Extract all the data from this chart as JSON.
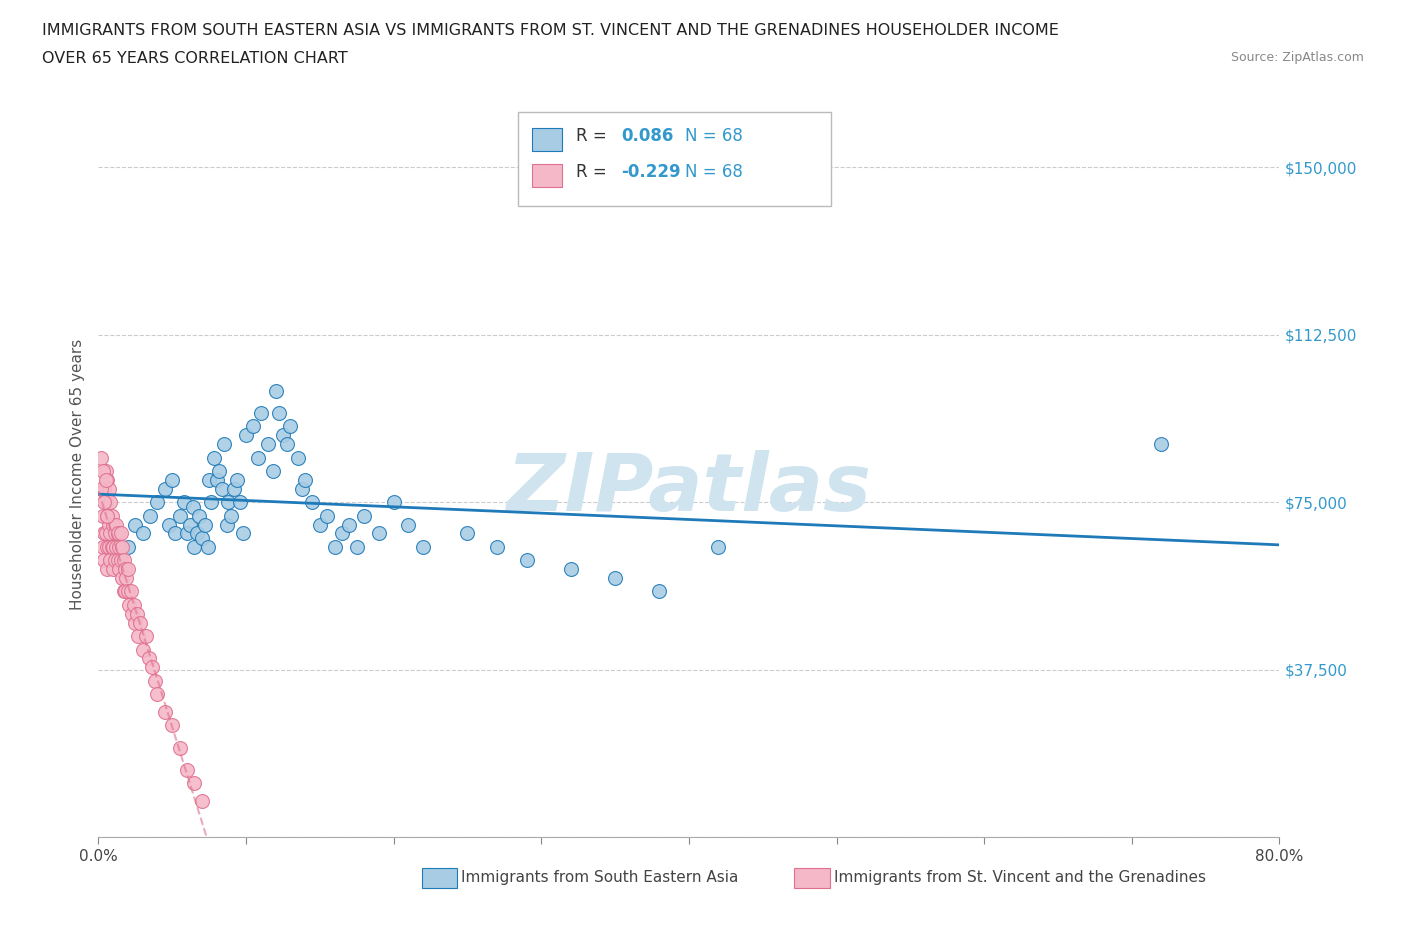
{
  "title_line1": "IMMIGRANTS FROM SOUTH EASTERN ASIA VS IMMIGRANTS FROM ST. VINCENT AND THE GRENADINES HOUSEHOLDER INCOME",
  "title_line2": "OVER 65 YEARS CORRELATION CHART",
  "source_text": "Source: ZipAtlas.com",
  "ylabel": "Householder Income Over 65 years",
  "xlim": [
    0.0,
    0.8
  ],
  "ylim": [
    0,
    162500
  ],
  "yticks": [
    0,
    37500,
    75000,
    112500,
    150000
  ],
  "ytick_labels": [
    "",
    "$37,500",
    "$75,000",
    "$112,500",
    "$150,000"
  ],
  "xticks": [
    0.0,
    0.1,
    0.2,
    0.3,
    0.4,
    0.5,
    0.6,
    0.7,
    0.8
  ],
  "xtick_labels": [
    "0.0%",
    "",
    "",
    "",
    "",
    "",
    "",
    "",
    "80.0%"
  ],
  "r1": 0.086,
  "n1": 68,
  "r2": -0.229,
  "n2": 68,
  "color_blue": "#a8cce4",
  "color_pink": "#f4b8c8",
  "color_line_blue": "#1e7ab8",
  "color_line_pink": "#e07090",
  "color_r_val": "#3399cc",
  "watermark": "ZIPatlas",
  "watermark_color": "#d0e4f0",
  "grid_color": "#cccccc",
  "grid_style": "--",
  "blue_x": [
    0.02,
    0.025,
    0.03,
    0.035,
    0.04,
    0.045,
    0.048,
    0.05,
    0.052,
    0.055,
    0.058,
    0.06,
    0.062,
    0.064,
    0.065,
    0.067,
    0.068,
    0.07,
    0.072,
    0.074,
    0.075,
    0.076,
    0.078,
    0.08,
    0.082,
    0.084,
    0.085,
    0.087,
    0.088,
    0.09,
    0.092,
    0.094,
    0.096,
    0.098,
    0.1,
    0.105,
    0.108,
    0.11,
    0.115,
    0.118,
    0.12,
    0.122,
    0.125,
    0.128,
    0.13,
    0.135,
    0.138,
    0.14,
    0.145,
    0.15,
    0.155,
    0.16,
    0.165,
    0.17,
    0.175,
    0.18,
    0.19,
    0.2,
    0.21,
    0.22,
    0.25,
    0.27,
    0.29,
    0.32,
    0.35,
    0.38,
    0.42,
    0.72
  ],
  "blue_y": [
    65000,
    70000,
    68000,
    72000,
    75000,
    78000,
    70000,
    80000,
    68000,
    72000,
    75000,
    68000,
    70000,
    74000,
    65000,
    68000,
    72000,
    67000,
    70000,
    65000,
    80000,
    75000,
    85000,
    80000,
    82000,
    78000,
    88000,
    70000,
    75000,
    72000,
    78000,
    80000,
    75000,
    68000,
    90000,
    92000,
    85000,
    95000,
    88000,
    82000,
    100000,
    95000,
    90000,
    88000,
    92000,
    85000,
    78000,
    80000,
    75000,
    70000,
    72000,
    65000,
    68000,
    70000,
    65000,
    72000,
    68000,
    75000,
    70000,
    65000,
    68000,
    65000,
    62000,
    60000,
    58000,
    55000,
    65000,
    88000
  ],
  "pink_x": [
    0.003,
    0.003,
    0.004,
    0.004,
    0.004,
    0.005,
    0.005,
    0.005,
    0.006,
    0.006,
    0.006,
    0.006,
    0.007,
    0.007,
    0.007,
    0.008,
    0.008,
    0.008,
    0.009,
    0.009,
    0.01,
    0.01,
    0.01,
    0.011,
    0.011,
    0.012,
    0.012,
    0.013,
    0.013,
    0.014,
    0.014,
    0.015,
    0.015,
    0.016,
    0.016,
    0.017,
    0.017,
    0.018,
    0.018,
    0.019,
    0.02,
    0.02,
    0.021,
    0.022,
    0.023,
    0.024,
    0.025,
    0.026,
    0.027,
    0.028,
    0.03,
    0.032,
    0.034,
    0.036,
    0.038,
    0.04,
    0.045,
    0.05,
    0.055,
    0.06,
    0.065,
    0.07,
    0.002,
    0.002,
    0.003,
    0.004,
    0.005,
    0.006
  ],
  "pink_y": [
    72000,
    65000,
    78000,
    68000,
    62000,
    82000,
    75000,
    68000,
    80000,
    72000,
    65000,
    60000,
    78000,
    70000,
    65000,
    75000,
    68000,
    62000,
    72000,
    65000,
    70000,
    65000,
    60000,
    68000,
    62000,
    70000,
    65000,
    68000,
    62000,
    65000,
    60000,
    68000,
    62000,
    65000,
    58000,
    62000,
    55000,
    60000,
    55000,
    58000,
    60000,
    55000,
    52000,
    55000,
    50000,
    52000,
    48000,
    50000,
    45000,
    48000,
    42000,
    45000,
    40000,
    38000,
    35000,
    32000,
    28000,
    25000,
    20000,
    15000,
    12000,
    8000,
    85000,
    78000,
    82000,
    75000,
    80000,
    72000
  ]
}
